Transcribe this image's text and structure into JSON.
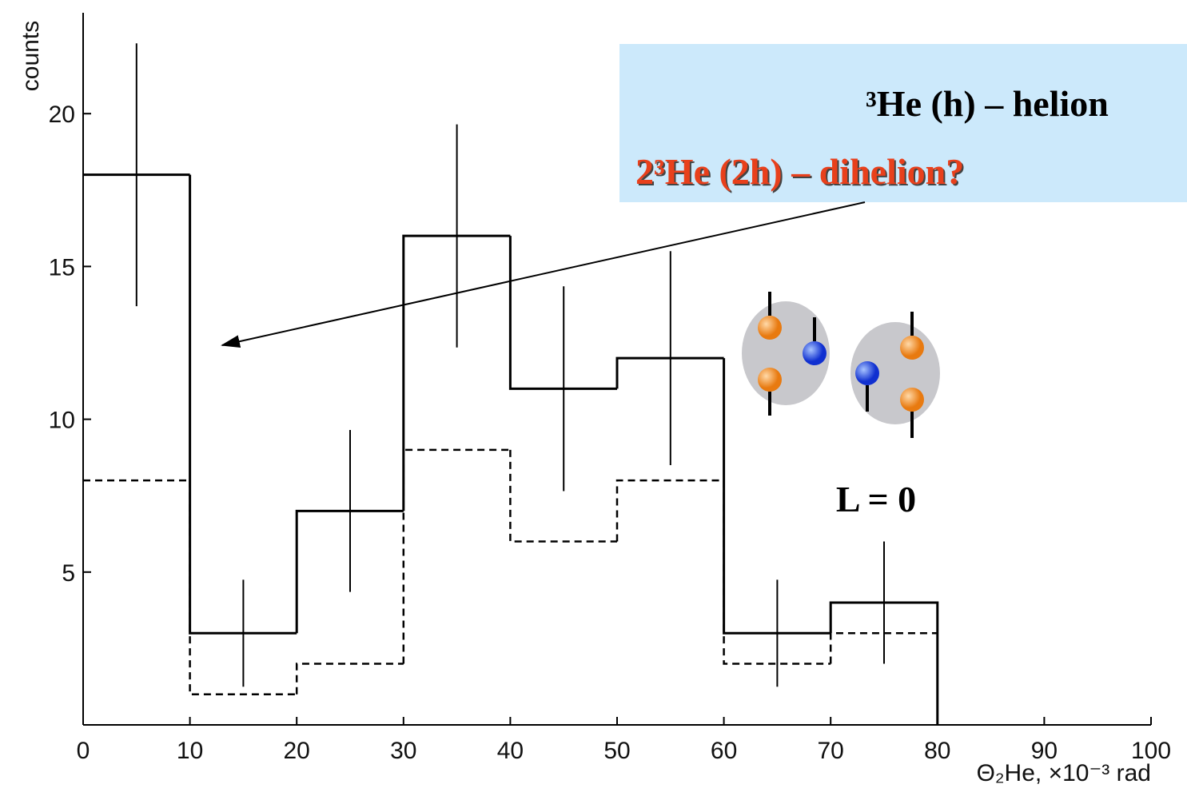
{
  "chart_data": {
    "type": "histogram",
    "bins": [
      0,
      10,
      20,
      30,
      40,
      50,
      60,
      70,
      80
    ],
    "series": [
      {
        "color": "#000000",
        "dash": false,
        "values": [
          18,
          3,
          7,
          16,
          11,
          12,
          3,
          4
        ],
        "errors": [
          4.3,
          1.75,
          2.65,
          3.65,
          3.35,
          3.5,
          1.75,
          2.0
        ]
      },
      {
        "color": "#000000",
        "dash": true,
        "values": [
          8,
          1,
          2,
          9,
          6,
          8,
          2,
          3
        ]
      }
    ],
    "xlim": [
      0,
      100
    ],
    "xticks": [
      0,
      10,
      20,
      30,
      40,
      50,
      60,
      70,
      80,
      90,
      100
    ],
    "ylim": [
      0,
      23.3
    ],
    "yticks": [
      5,
      10,
      15,
      20
    ],
    "ylabel": "counts",
    "xlabel": "Θ₂He, ×10⁻³ rad",
    "annotations": [
      "³He (h) – helion",
      "2³He (2h) – dihelion?",
      "L = 0"
    ]
  }
}
